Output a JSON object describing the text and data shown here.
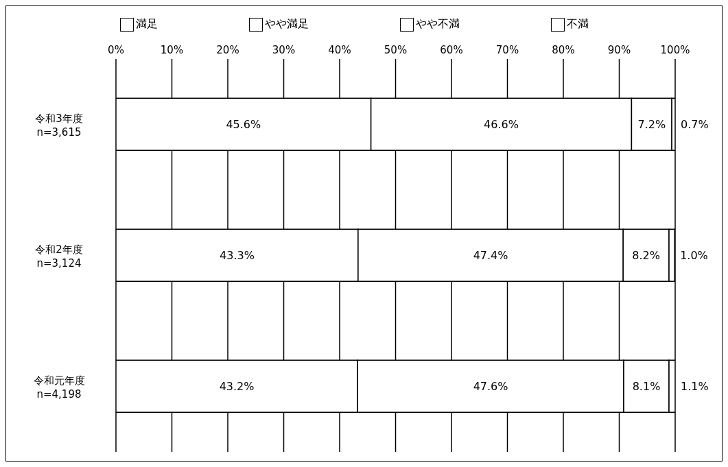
{
  "chart_data": {
    "type": "bar",
    "orientation": "horizontal",
    "stacked": true,
    "categories": [
      "令和3年度\nn=3,615",
      "令和2年度\nn=3,124",
      "令和元年度\nn=4,198"
    ],
    "series": [
      {
        "name": "満足",
        "color": "#ffffff",
        "values": [
          45.6,
          43.3,
          43.2
        ],
        "value_labels": [
          "45.6%",
          "43.3%",
          "43.2%"
        ]
      },
      {
        "name": "やや満足",
        "color": "#ffffff",
        "values": [
          46.6,
          47.4,
          47.6
        ],
        "value_labels": [
          "46.6%",
          "47.4%",
          "47.6%"
        ]
      },
      {
        "name": "やや不満",
        "color": "#ffffff",
        "values": [
          7.2,
          8.2,
          8.1
        ],
        "value_labels": [
          "7.2%",
          "8.2%",
          "8.1%"
        ]
      },
      {
        "name": "不満",
        "color": "#ffffff",
        "values": [
          0.7,
          1.0,
          1.1
        ],
        "value_labels": [
          "0.7%",
          "1.0%",
          "1.1%"
        ]
      }
    ],
    "xlim": [
      0,
      100
    ],
    "xticks": [
      {
        "value": 0,
        "label": "0%"
      },
      {
        "value": 10,
        "label": "10%"
      },
      {
        "value": 20,
        "label": "20%"
      },
      {
        "value": 30,
        "label": "30%"
      },
      {
        "value": 40,
        "label": "40%"
      },
      {
        "value": 50,
        "label": "50%"
      },
      {
        "value": 60,
        "label": "60%"
      },
      {
        "value": 70,
        "label": "70%"
      },
      {
        "value": 80,
        "label": "80%"
      },
      {
        "value": 90,
        "label": "90%"
      },
      {
        "value": 100,
        "label": "100%"
      }
    ],
    "grid": "x",
    "legend": "top"
  }
}
